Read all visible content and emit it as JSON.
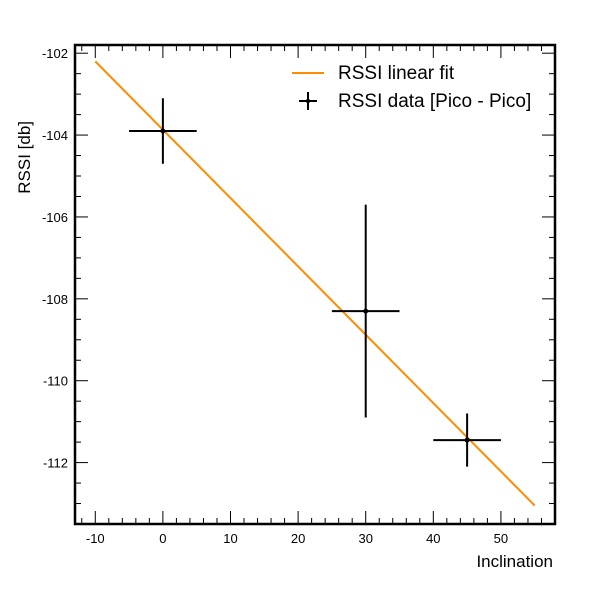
{
  "chart_data": {
    "type": "scatter",
    "xlabel": "Inclination",
    "ylabel": "RSSI [db]",
    "xlim": [
      -13,
      58
    ],
    "ylim": [
      -113.5,
      -101.8
    ],
    "x_major_ticks": [
      -10,
      0,
      10,
      20,
      30,
      40,
      50
    ],
    "y_major_ticks": [
      -112,
      -110,
      -108,
      -106,
      -104,
      -102
    ],
    "x_tick_labels": [
      "-10",
      "0",
      "10",
      "20",
      "30",
      "40",
      "50"
    ],
    "y_tick_labels": [
      "-112",
      "-110",
      "-108",
      "-106",
      "-104",
      "-102"
    ],
    "grid": false,
    "legend_position": "top-right",
    "series": [
      {
        "name": "RSSI linear fit",
        "kind": "line",
        "color": "#ff8c00",
        "x": [
          -10,
          55
        ],
        "y": [
          -102.2,
          -113.05
        ]
      },
      {
        "name": "RSSI data [Pico - Pico]",
        "kind": "errorbar",
        "color": "#000000",
        "points": [
          {
            "x": 0,
            "y": -103.9,
            "xerr": 5,
            "yerr": 0.8
          },
          {
            "x": 30,
            "y": -108.3,
            "xerr": 5,
            "yerr": 2.6
          },
          {
            "x": 45,
            "y": -111.45,
            "xerr": 5,
            "yerr": 0.65
          }
        ]
      }
    ]
  }
}
